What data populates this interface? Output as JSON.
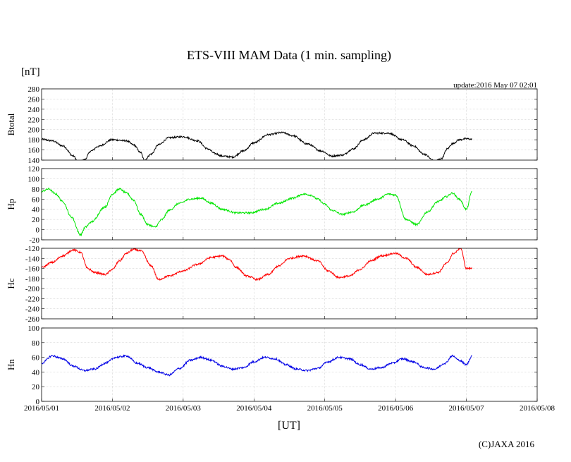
{
  "chart_data": {
    "title": "ETS-VIII MAM Data (1 min. sampling)",
    "unit_label": "[nT]",
    "update": "update:2016 May 07 02:01",
    "xlabel": "[UT]",
    "copyright": "(C)JAXA 2016",
    "x_ticks": [
      "2016/05/01",
      "2016/05/02",
      "2016/05/03",
      "2016/05/04",
      "2016/05/05",
      "2016/05/06",
      "2016/05/07",
      "2016/05/08"
    ],
    "xlim_days": [
      0,
      7
    ],
    "data_end_day": 6.08,
    "grid": true,
    "panels": [
      {
        "name": "Btotal",
        "type": "line",
        "color": "#000000",
        "ylim": [
          140,
          280
        ],
        "yticks": [
          140,
          160,
          180,
          200,
          220,
          240,
          260,
          280
        ],
        "series": [
          {
            "x": [
              0.0,
              0.15,
              0.3,
              0.45,
              0.52,
              0.6,
              0.7,
              0.8,
              1.0,
              1.2,
              1.3,
              1.4,
              1.45,
              1.55,
              1.65,
              1.8,
              2.0,
              2.2,
              2.35,
              2.45,
              2.55,
              2.7,
              2.85,
              3.0,
              3.2,
              3.4,
              3.55,
              3.75,
              3.95,
              4.1,
              4.25,
              4.4,
              4.55,
              4.7,
              4.9,
              5.1,
              5.25,
              5.4,
              5.55,
              5.65,
              5.73,
              5.8,
              5.9,
              6.0,
              6.08
            ],
            "y": [
              181,
              178,
              168,
              148,
              135,
              140,
              158,
              167,
              180,
              178,
              170,
              155,
              140,
              152,
              170,
              184,
              186,
              178,
              162,
              153,
              148,
              146,
              158,
              174,
              190,
              194,
              188,
              172,
              158,
              148,
              150,
              162,
              180,
              193,
              193,
              180,
              168,
              152,
              138,
              143,
              162,
              172,
              180,
              182,
              181
            ]
          }
        ]
      },
      {
        "name": "Hp",
        "type": "line",
        "color": "#00e600",
        "ylim": [
          -20,
          120
        ],
        "yticks": [
          -20,
          0,
          20,
          40,
          60,
          80,
          100,
          120
        ],
        "series": [
          {
            "x": [
              0.0,
              0.1,
              0.2,
              0.3,
              0.42,
              0.55,
              0.62,
              0.7,
              0.9,
              1.0,
              1.1,
              1.2,
              1.3,
              1.4,
              1.5,
              1.6,
              1.7,
              1.8,
              1.95,
              2.1,
              2.25,
              2.4,
              2.55,
              2.75,
              2.95,
              3.15,
              3.35,
              3.55,
              3.7,
              3.8,
              3.9,
              4.0,
              4.1,
              4.25,
              4.4,
              4.55,
              4.75,
              4.9,
              5.0,
              5.15,
              5.3,
              5.45,
              5.6,
              5.72,
              5.8,
              5.9,
              6.0,
              6.08
            ],
            "y": [
              75,
              80,
              70,
              55,
              25,
              -10,
              5,
              15,
              45,
              70,
              80,
              72,
              58,
              30,
              10,
              5,
              20,
              38,
              52,
              60,
              62,
              52,
              40,
              33,
              33,
              40,
              52,
              62,
              70,
              68,
              60,
              50,
              38,
              30,
              35,
              48,
              60,
              70,
              68,
              20,
              10,
              35,
              55,
              65,
              72,
              60,
              40,
              75
            ]
          }
        ]
      },
      {
        "name": "Hc",
        "type": "line",
        "color": "#ff0000",
        "ylim": [
          -260,
          -120
        ],
        "yticks": [
          -260,
          -240,
          -220,
          -200,
          -180,
          -160,
          -140,
          -120
        ],
        "series": [
          {
            "x": [
              0.0,
              0.15,
              0.3,
              0.45,
              0.55,
              0.65,
              0.75,
              0.9,
              1.0,
              1.1,
              1.2,
              1.3,
              1.4,
              1.55,
              1.65,
              1.8,
              2.0,
              2.2,
              2.4,
              2.55,
              2.65,
              2.75,
              2.9,
              3.05,
              3.2,
              3.35,
              3.5,
              3.7,
              3.9,
              4.05,
              4.2,
              4.35,
              4.5,
              4.65,
              4.8,
              5.0,
              5.15,
              5.3,
              5.45,
              5.6,
              5.72,
              5.82,
              5.92,
              6.0,
              6.08
            ],
            "y": [
              -158,
              -148,
              -135,
              -123,
              -128,
              -160,
              -168,
              -172,
              -162,
              -145,
              -130,
              -122,
              -125,
              -155,
              -182,
              -175,
              -165,
              -152,
              -138,
              -135,
              -142,
              -158,
              -175,
              -182,
              -172,
              -155,
              -140,
              -135,
              -145,
              -165,
              -178,
              -175,
              -162,
              -145,
              -135,
              -130,
              -140,
              -158,
              -172,
              -168,
              -150,
              -130,
              -120,
              -160,
              -160
            ]
          }
        ]
      },
      {
        "name": "Hn",
        "type": "line",
        "color": "#0000e6",
        "ylim": [
          0,
          100
        ],
        "yticks": [
          0,
          20,
          40,
          60,
          80,
          100
        ],
        "series": [
          {
            "x": [
              0.0,
              0.15,
              0.3,
              0.45,
              0.6,
              0.75,
              0.9,
              1.05,
              1.2,
              1.35,
              1.5,
              1.65,
              1.8,
              1.95,
              2.1,
              2.25,
              2.4,
              2.55,
              2.7,
              2.85,
              3.0,
              3.15,
              3.3,
              3.45,
              3.6,
              3.75,
              3.9,
              4.05,
              4.2,
              4.35,
              4.5,
              4.65,
              4.8,
              4.95,
              5.1,
              5.25,
              5.4,
              5.55,
              5.7,
              5.8,
              5.9,
              6.0,
              6.08
            ],
            "y": [
              52,
              62,
              58,
              48,
              42,
              44,
              52,
              60,
              62,
              52,
              46,
              40,
              36,
              45,
              56,
              60,
              56,
              48,
              44,
              46,
              54,
              60,
              58,
              50,
              44,
              42,
              45,
              54,
              60,
              58,
              50,
              44,
              46,
              52,
              58,
              54,
              46,
              44,
              52,
              62,
              56,
              50,
              62
            ]
          }
        ]
      }
    ]
  }
}
